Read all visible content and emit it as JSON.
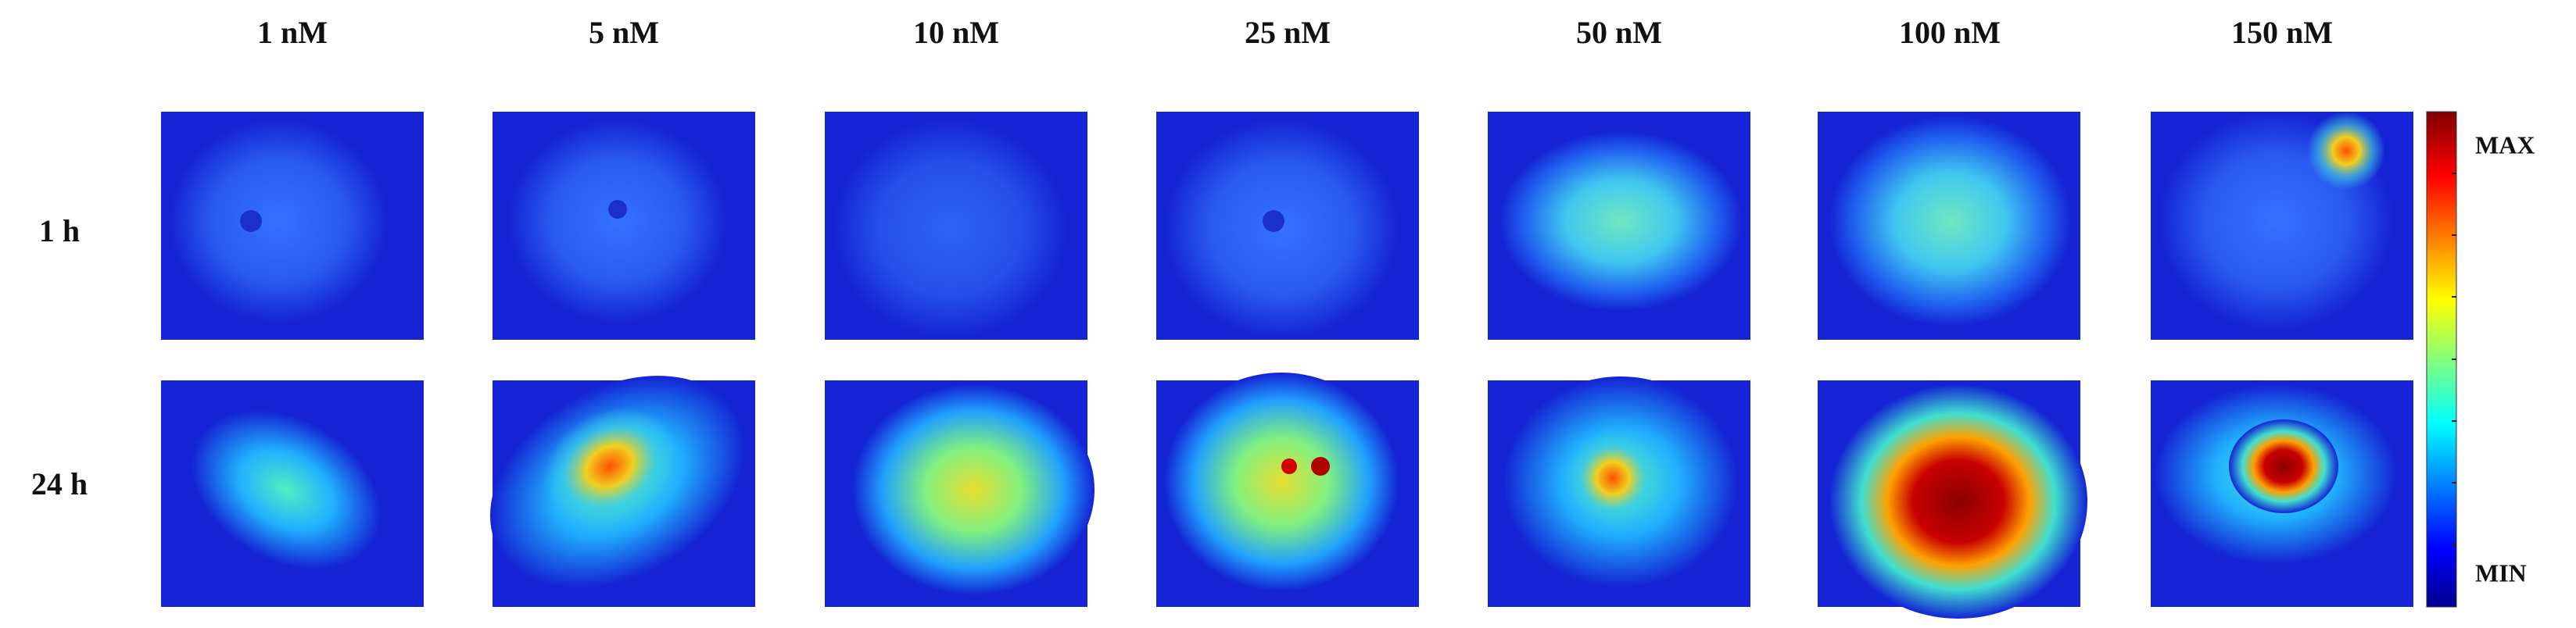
{
  "column_labels": [
    "1 nM",
    "5 nM",
    "10 nM",
    "25 nM",
    "50 nM",
    "100 nM",
    "150 nM"
  ],
  "row_labels": [
    "1 h",
    "24 h"
  ],
  "colorbar": {
    "max_label": "MAX",
    "min_label": "MIN"
  }
}
